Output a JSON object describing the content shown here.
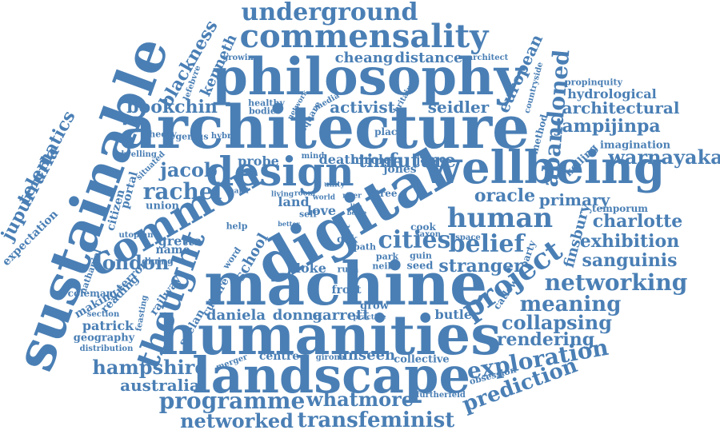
{
  "color": "#4a7fb5",
  "words": [
    {
      "text": "underground"
    },
    {
      "text": "commensality"
    },
    {
      "text": "philosophy"
    },
    {
      "text": "architecture"
    },
    {
      "text": "sustainable"
    },
    {
      "text": "digital"
    },
    {
      "text": "machine"
    },
    {
      "text": "humanities"
    },
    {
      "text": "landscape"
    },
    {
      "text": "wellbeing"
    },
    {
      "text": "design"
    },
    {
      "text": "common"
    },
    {
      "text": "thought"
    },
    {
      "text": "abandoned"
    },
    {
      "text": "european"
    },
    {
      "text": "blackness"
    },
    {
      "text": "kenneth"
    },
    {
      "text": "telematics"
    },
    {
      "text": "jupurrurla"
    },
    {
      "text": "expectation"
    },
    {
      "text": "hydrological"
    },
    {
      "text": "architectural"
    },
    {
      "text": "jampijinpa"
    },
    {
      "text": "warnayaka"
    },
    {
      "text": "imagination"
    },
    {
      "text": "propinquity"
    },
    {
      "text": "temporum"
    },
    {
      "text": "charlotte"
    },
    {
      "text": "exhibition"
    },
    {
      "text": "sanguinis"
    },
    {
      "text": "networking"
    },
    {
      "text": "meaning"
    },
    {
      "text": "collapsing"
    },
    {
      "text": "rendering"
    },
    {
      "text": "exploration"
    },
    {
      "text": "prediction"
    },
    {
      "text": "transfeminist"
    },
    {
      "text": "whatmore"
    },
    {
      "text": "programme"
    },
    {
      "text": "networked"
    },
    {
      "text": "australia"
    },
    {
      "text": "hampshire"
    },
    {
      "text": "project"
    },
    {
      "text": "belief"
    },
    {
      "text": "stranger"
    },
    {
      "text": "cities"
    },
    {
      "text": "human"
    },
    {
      "text": "oracle"
    },
    {
      "text": "primary"
    },
    {
      "text": "finsbury"
    },
    {
      "text": "rachel"
    },
    {
      "text": "jacob"
    },
    {
      "text": "london"
    },
    {
      "text": "bookchin"
    },
    {
      "text": "cheang"
    },
    {
      "text": "distance"
    },
    {
      "text": "activist"
    },
    {
      "text": "seidler"
    },
    {
      "text": "future"
    },
    {
      "text": "time"
    },
    {
      "text": "jones"
    },
    {
      "text": "james"
    },
    {
      "text": "probe"
    },
    {
      "text": "death"
    },
    {
      "text": "circle"
    },
    {
      "text": "daniela"
    },
    {
      "text": "donna"
    },
    {
      "text": "garrett"
    },
    {
      "text": "butler"
    },
    {
      "text": "patrick"
    },
    {
      "text": "geography"
    },
    {
      "text": "gretta"
    },
    {
      "text": "name"
    },
    {
      "text": "school"
    },
    {
      "text": "railway"
    },
    {
      "text": "culture"
    },
    {
      "text": "reading"
    },
    {
      "text": "terror"
    },
    {
      "text": "making"
    },
    {
      "text": "coleman"
    },
    {
      "text": "nathaniel"
    },
    {
      "text": "seelan"
    },
    {
      "text": "centre"
    },
    {
      "text": "unseen"
    },
    {
      "text": "collective"
    },
    {
      "text": "frost"
    },
    {
      "text": "ruth"
    },
    {
      "text": "cloke"
    },
    {
      "text": "neil"
    },
    {
      "text": "seed"
    },
    {
      "text": "guin"
    },
    {
      "text": "park"
    },
    {
      "text": "path"
    },
    {
      "text": "cook"
    },
    {
      "text": "saxon"
    },
    {
      "text": "land"
    },
    {
      "text": "love"
    },
    {
      "text": "self"
    },
    {
      "text": "tree"
    },
    {
      "text": "grow"
    },
    {
      "text": "citizen"
    },
    {
      "text": "portal"
    },
    {
      "text": "union"
    },
    {
      "text": "genius"
    },
    {
      "text": "theory"
    },
    {
      "text": "dwelling"
    },
    {
      "text": "situated"
    },
    {
      "text": "hybrid"
    },
    {
      "text": "healthy"
    },
    {
      "text": "bodies"
    },
    {
      "text": "growing"
    },
    {
      "text": "lefebvre"
    },
    {
      "text": "architect"
    },
    {
      "text": "countryside"
    },
    {
      "text": "method"
    },
    {
      "text": "kolling"
    },
    {
      "text": "catlow"
    },
    {
      "text": "party"
    },
    {
      "text": "space"
    },
    {
      "text": "obsession"
    },
    {
      "text": "furtherfeld"
    },
    {
      "text": "girona"
    },
    {
      "text": "merger"
    },
    {
      "text": "distribution"
    },
    {
      "text": "section"
    },
    {
      "text": "utopian"
    },
    {
      "text": "dining"
    },
    {
      "text": "feasting"
    },
    {
      "text": "help"
    },
    {
      "text": "word"
    },
    {
      "text": "place"
    },
    {
      "text": "square"
    },
    {
      "text": "network"
    },
    {
      "text": "media"
    },
    {
      "text": "britain"
    },
    {
      "text": "mind"
    },
    {
      "text": "unity"
    },
    {
      "text": "room"
    },
    {
      "text": "world"
    },
    {
      "text": "living"
    },
    {
      "text": "marti"
    },
    {
      "text": "better"
    },
    {
      "text": "oak"
    },
    {
      "text": "art"
    },
    {
      "text": "life"
    },
    {
      "text": "river"
    },
    {
      "text": "beige"
    },
    {
      "text": "practice"
    }
  ]
}
